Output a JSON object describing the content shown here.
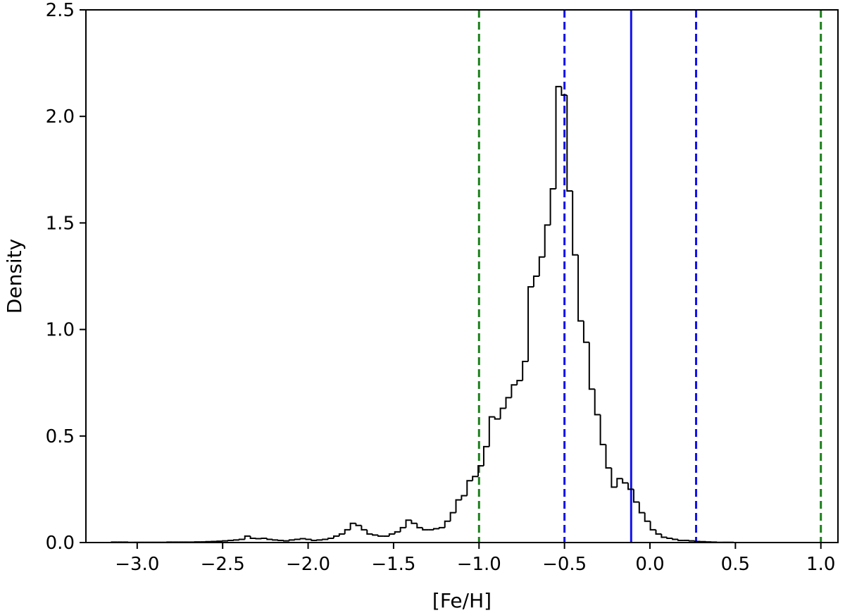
{
  "chart_data": {
    "type": "histogram",
    "xlabel": "[Fe/H]",
    "ylabel": "Density",
    "xlim": [
      -3.3,
      1.1
    ],
    "ylim": [
      0,
      2.5
    ],
    "xticks": [
      -3.0,
      -2.5,
      -2.0,
      -1.5,
      -1.0,
      -0.5,
      0.0,
      0.5,
      1.0
    ],
    "xtick_labels": [
      "−3.0",
      "−2.5",
      "−2.0",
      "−1.5",
      "−1.0",
      "−0.5",
      "0.0",
      "0.5",
      "1.0"
    ],
    "yticks": [
      0.0,
      0.5,
      1.0,
      1.5,
      2.0,
      2.5
    ],
    "ytick_labels": [
      "0.0",
      "0.5",
      "1.0",
      "1.5",
      "2.0",
      "2.5"
    ],
    "grid": false,
    "histogram": {
      "color": "#000000",
      "bin_width": 0.0325,
      "bin_start": -3.15,
      "density": [
        0.002,
        0.002,
        0.002,
        0.001,
        0.001,
        0.001,
        0.001,
        0.001,
        0.001,
        0.001,
        0.002,
        0.002,
        0.002,
        0.002,
        0.002,
        0.003,
        0.003,
        0.004,
        0.005,
        0.006,
        0.008,
        0.01,
        0.012,
        0.015,
        0.03,
        0.02,
        0.018,
        0.02,
        0.015,
        0.012,
        0.01,
        0.008,
        0.012,
        0.015,
        0.018,
        0.015,
        0.01,
        0.012,
        0.015,
        0.02,
        0.03,
        0.04,
        0.06,
        0.09,
        0.08,
        0.06,
        0.04,
        0.035,
        0.03,
        0.03,
        0.04,
        0.05,
        0.07,
        0.105,
        0.09,
        0.07,
        0.06,
        0.06,
        0.065,
        0.07,
        0.1,
        0.14,
        0.2,
        0.22,
        0.29,
        0.31,
        0.36,
        0.45,
        0.59,
        0.58,
        0.63,
        0.68,
        0.74,
        0.76,
        0.85,
        1.2,
        1.25,
        1.34,
        1.49,
        1.66,
        2.14,
        2.1,
        1.65,
        1.35,
        1.04,
        0.94,
        0.72,
        0.6,
        0.46,
        0.35,
        0.26,
        0.3,
        0.28,
        0.25,
        0.19,
        0.14,
        0.1,
        0.06,
        0.04,
        0.025,
        0.02,
        0.015,
        0.01,
        0.01,
        0.008,
        0.005,
        0.004,
        0.003,
        0.002,
        0.001,
        0.001,
        0.001
      ]
    },
    "vlines": [
      {
        "x": -1.0,
        "color": "#1a7f1a",
        "style": "dashed"
      },
      {
        "x": -0.5,
        "color": "#1111ee",
        "style": "dashed"
      },
      {
        "x": -0.11,
        "color": "#1111ee",
        "style": "solid"
      },
      {
        "x": 0.27,
        "color": "#1111ee",
        "style": "dashed"
      },
      {
        "x": 1.0,
        "color": "#1a7f1a",
        "style": "dashed"
      }
    ]
  }
}
